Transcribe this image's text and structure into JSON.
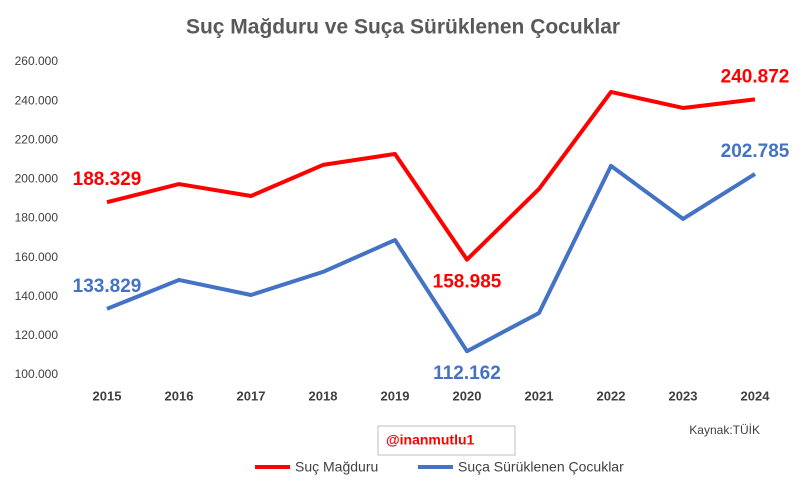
{
  "chart_data": {
    "type": "line",
    "title": "Suç Mağduru ve Suça Sürüklenen Çocuklar",
    "categories": [
      "2015",
      "2016",
      "2017",
      "2018",
      "2019",
      "2020",
      "2021",
      "2022",
      "2023",
      "2024"
    ],
    "series": [
      {
        "name": "Suç Mağduru",
        "color": "#ff0000",
        "values": [
          188329,
          197600,
          191500,
          207400,
          213000,
          158985,
          195100,
          244700,
          236500,
          240872
        ],
        "value_labels": [
          "188.329",
          null,
          null,
          null,
          null,
          "158.985",
          null,
          null,
          null,
          "240.872"
        ]
      },
      {
        "name": "Suça Sürüklenen Çocuklar",
        "color": "#4472c4",
        "values": [
          133829,
          148600,
          140900,
          152700,
          169000,
          112162,
          131700,
          206900,
          179800,
          202785
        ],
        "value_labels": [
          "133.829",
          null,
          null,
          null,
          null,
          "112.162",
          null,
          null,
          null,
          "202.785"
        ]
      }
    ],
    "ylim": [
      100000,
      260000
    ],
    "yticks": [
      {
        "value": 100000,
        "label": "100.000"
      },
      {
        "value": 120000,
        "label": "120.000"
      },
      {
        "value": 140000,
        "label": "140.000"
      },
      {
        "value": 160000,
        "label": "160.000"
      },
      {
        "value": 180000,
        "label": "180.000"
      },
      {
        "value": 200000,
        "label": "200.000"
      },
      {
        "value": 220000,
        "label": "220.000"
      },
      {
        "value": 240000,
        "label": "240.000"
      },
      {
        "value": 260000,
        "label": "260.000"
      }
    ],
    "annotations": [
      "@inanmutlu1",
      "Kaynak:TÜİK"
    ],
    "legend": "bottom"
  }
}
